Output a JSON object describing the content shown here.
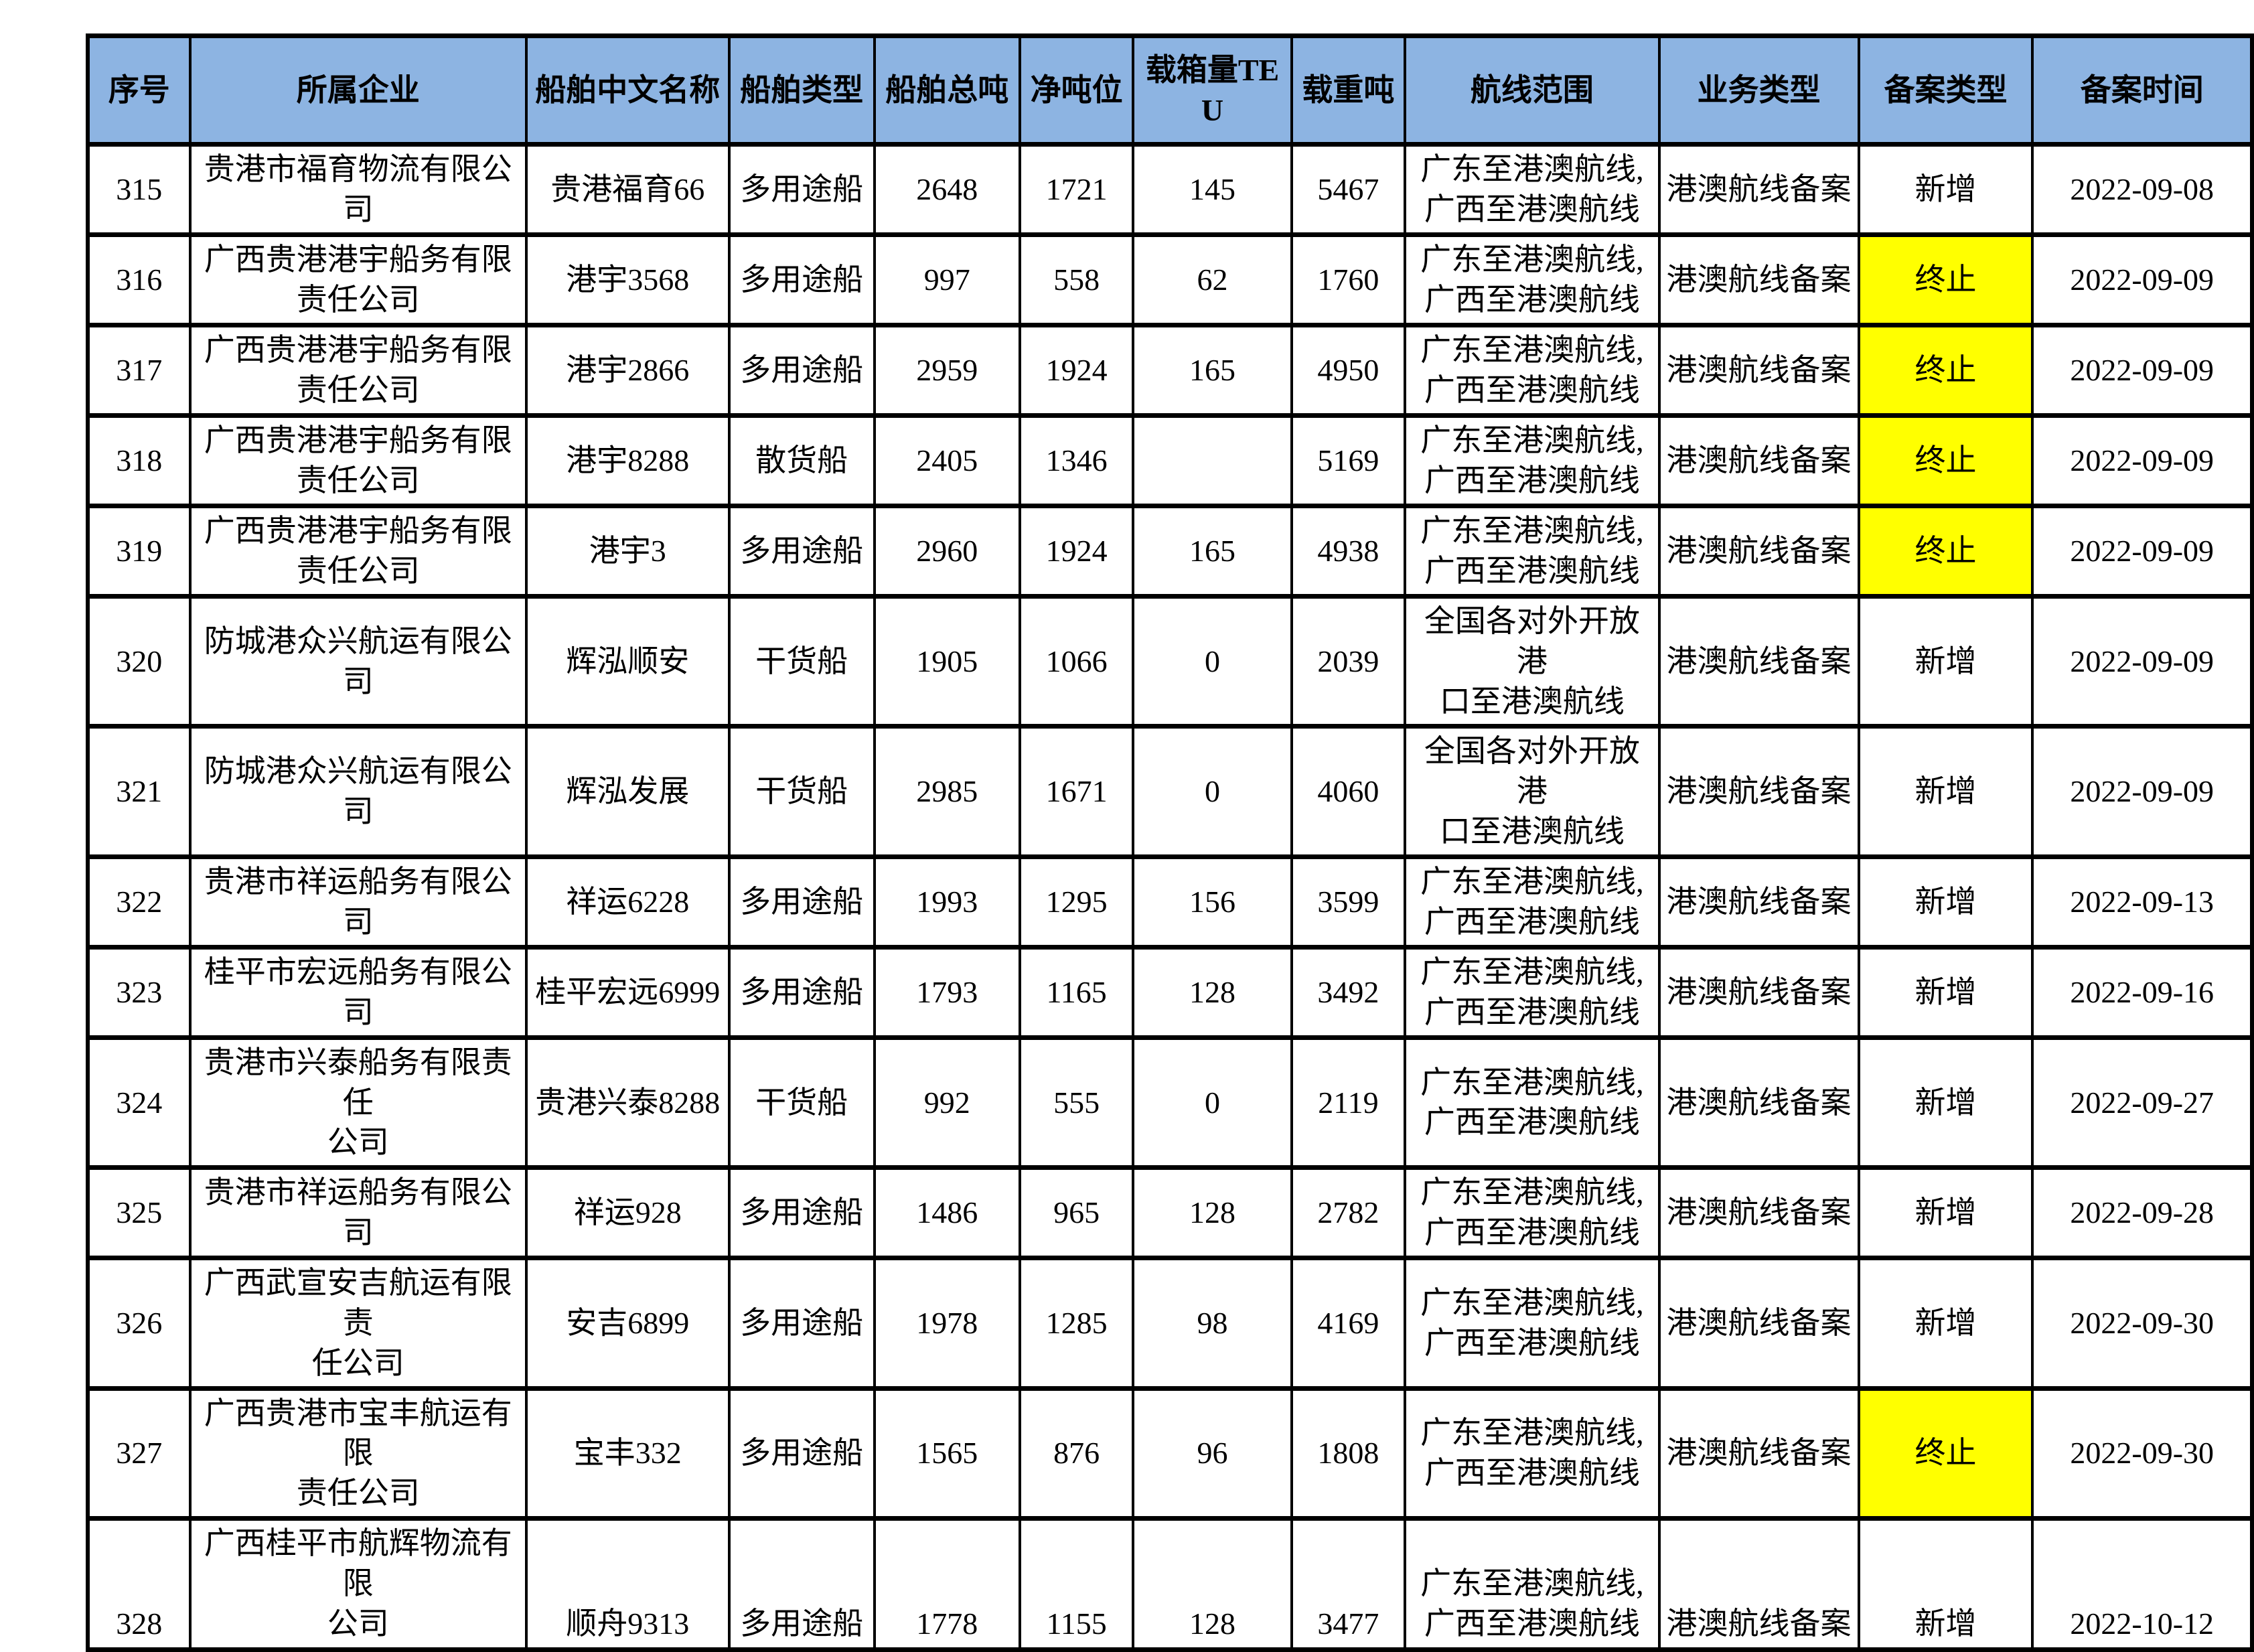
{
  "colors": {
    "header_bg": "#8DB4E2",
    "highlight_bg": "#FFFF00",
    "border": "#000000",
    "text": "#000000"
  },
  "table": {
    "columns": [
      {
        "key": "seq",
        "label": "序号"
      },
      {
        "key": "company",
        "label": "所属企业"
      },
      {
        "key": "ship_name",
        "label": "船舶中文名称"
      },
      {
        "key": "ship_type",
        "label": "船舶类型"
      },
      {
        "key": "gross",
        "label": "船舶总吨"
      },
      {
        "key": "net",
        "label": "净吨位"
      },
      {
        "key": "teu",
        "label": "载箱量TEU"
      },
      {
        "key": "dwt",
        "label": "载重吨"
      },
      {
        "key": "route",
        "label": "航线范围"
      },
      {
        "key": "biz",
        "label": "业务类型"
      },
      {
        "key": "filing",
        "label": "备案类型"
      },
      {
        "key": "date",
        "label": "备案时间"
      }
    ],
    "rows": [
      {
        "seq": "315",
        "company": "贵港市福育物流有限公司",
        "ship_name": "贵港福育66",
        "ship_type": "多用途船",
        "gross": "2648",
        "net": "1721",
        "teu": "145",
        "dwt": "5467",
        "route": "广东至港澳航线,\n广西至港澳航线",
        "biz": "港澳航线备案",
        "filing": "新增",
        "filing_highlight": false,
        "date": "2022-09-08"
      },
      {
        "seq": "316",
        "company": "广西贵港港宇船务有限责任公司",
        "ship_name": "港宇3568",
        "ship_type": "多用途船",
        "gross": "997",
        "net": "558",
        "teu": "62",
        "dwt": "1760",
        "route": "广东至港澳航线,\n广西至港澳航线",
        "biz": "港澳航线备案",
        "filing": "终止",
        "filing_highlight": true,
        "date": "2022-09-09"
      },
      {
        "seq": "317",
        "company": "广西贵港港宇船务有限责任公司",
        "ship_name": "港宇2866",
        "ship_type": "多用途船",
        "gross": "2959",
        "net": "1924",
        "teu": "165",
        "dwt": "4950",
        "route": "广东至港澳航线,\n广西至港澳航线",
        "biz": "港澳航线备案",
        "filing": "终止",
        "filing_highlight": true,
        "date": "2022-09-09"
      },
      {
        "seq": "318",
        "company": "广西贵港港宇船务有限责任公司",
        "ship_name": "港宇8288",
        "ship_type": "散货船",
        "gross": "2405",
        "net": "1346",
        "teu": "",
        "dwt": "5169",
        "route": "广东至港澳航线,\n广西至港澳航线",
        "biz": "港澳航线备案",
        "filing": "终止",
        "filing_highlight": true,
        "date": "2022-09-09"
      },
      {
        "seq": "319",
        "company": "广西贵港港宇船务有限责任公司",
        "ship_name": "港宇3",
        "ship_type": "多用途船",
        "gross": "2960",
        "net": "1924",
        "teu": "165",
        "dwt": "4938",
        "route": "广东至港澳航线,\n广西至港澳航线",
        "biz": "港澳航线备案",
        "filing": "终止",
        "filing_highlight": true,
        "date": "2022-09-09"
      },
      {
        "seq": "320",
        "company": "防城港众兴航运有限公司",
        "ship_name": "辉泓顺安",
        "ship_type": "干货船",
        "gross": "1905",
        "net": "1066",
        "teu": "0",
        "dwt": "2039",
        "route": "全国各对外开放港\n口至港澳航线",
        "biz": "港澳航线备案",
        "filing": "新增",
        "filing_highlight": false,
        "date": "2022-09-09"
      },
      {
        "seq": "321",
        "company": "防城港众兴航运有限公司",
        "ship_name": "辉泓发展",
        "ship_type": "干货船",
        "gross": "2985",
        "net": "1671",
        "teu": "0",
        "dwt": "4060",
        "route": "全国各对外开放港\n口至港澳航线",
        "biz": "港澳航线备案",
        "filing": "新增",
        "filing_highlight": false,
        "date": "2022-09-09"
      },
      {
        "seq": "322",
        "company": "贵港市祥运船务有限公司",
        "ship_name": "祥运6228",
        "ship_type": "多用途船",
        "gross": "1993",
        "net": "1295",
        "teu": "156",
        "dwt": "3599",
        "route": "广东至港澳航线,\n广西至港澳航线",
        "biz": "港澳航线备案",
        "filing": "新增",
        "filing_highlight": false,
        "date": "2022-09-13"
      },
      {
        "seq": "323",
        "company": "桂平市宏远船务有限公司",
        "ship_name": "桂平宏远6999",
        "ship_type": "多用途船",
        "gross": "1793",
        "net": "1165",
        "teu": "128",
        "dwt": "3492",
        "route": "广东至港澳航线,\n广西至港澳航线",
        "biz": "港澳航线备案",
        "filing": "新增",
        "filing_highlight": false,
        "date": "2022-09-16"
      },
      {
        "seq": "324",
        "company": "贵港市兴泰船务有限责任\n公司",
        "ship_name": "贵港兴泰8288",
        "ship_type": "干货船",
        "gross": "992",
        "net": "555",
        "teu": "0",
        "dwt": "2119",
        "route": "广东至港澳航线,\n广西至港澳航线",
        "biz": "港澳航线备案",
        "filing": "新增",
        "filing_highlight": false,
        "date": "2022-09-27"
      },
      {
        "seq": "325",
        "company": "贵港市祥运船务有限公司",
        "ship_name": "祥运928",
        "ship_type": "多用途船",
        "gross": "1486",
        "net": "965",
        "teu": "128",
        "dwt": "2782",
        "route": "广东至港澳航线,\n广西至港澳航线",
        "biz": "港澳航线备案",
        "filing": "新增",
        "filing_highlight": false,
        "date": "2022-09-28"
      },
      {
        "seq": "326",
        "company": "广西武宣安吉航运有限责\n任公司",
        "ship_name": "安吉6899",
        "ship_type": "多用途船",
        "gross": "1978",
        "net": "1285",
        "teu": "98",
        "dwt": "4169",
        "route": "广东至港澳航线,\n广西至港澳航线",
        "biz": "港澳航线备案",
        "filing": "新增",
        "filing_highlight": false,
        "date": "2022-09-30"
      },
      {
        "seq": "327",
        "company": "广西贵港市宝丰航运有限\n责任公司",
        "ship_name": "宝丰332",
        "ship_type": "多用途船",
        "gross": "1565",
        "net": "876",
        "teu": "96",
        "dwt": "1808",
        "route": "广东至港澳航线,\n广西至港澳航线",
        "biz": "港澳航线备案",
        "filing": "终止",
        "filing_highlight": true,
        "date": "2022-09-30"
      },
      {
        "seq": "328",
        "company": "广西桂平市航辉物流有限\n公司",
        "ship_name": "顺舟9313",
        "ship_type": "多用途船",
        "gross": "1778",
        "net": "1155",
        "teu": "128",
        "dwt": "3477",
        "route": "广东至港澳航线,\n广西至港澳航线",
        "biz": "港澳航线备案",
        "filing": "新增",
        "filing_highlight": false,
        "date": "2022-10-12",
        "valign": "bottom"
      }
    ]
  }
}
